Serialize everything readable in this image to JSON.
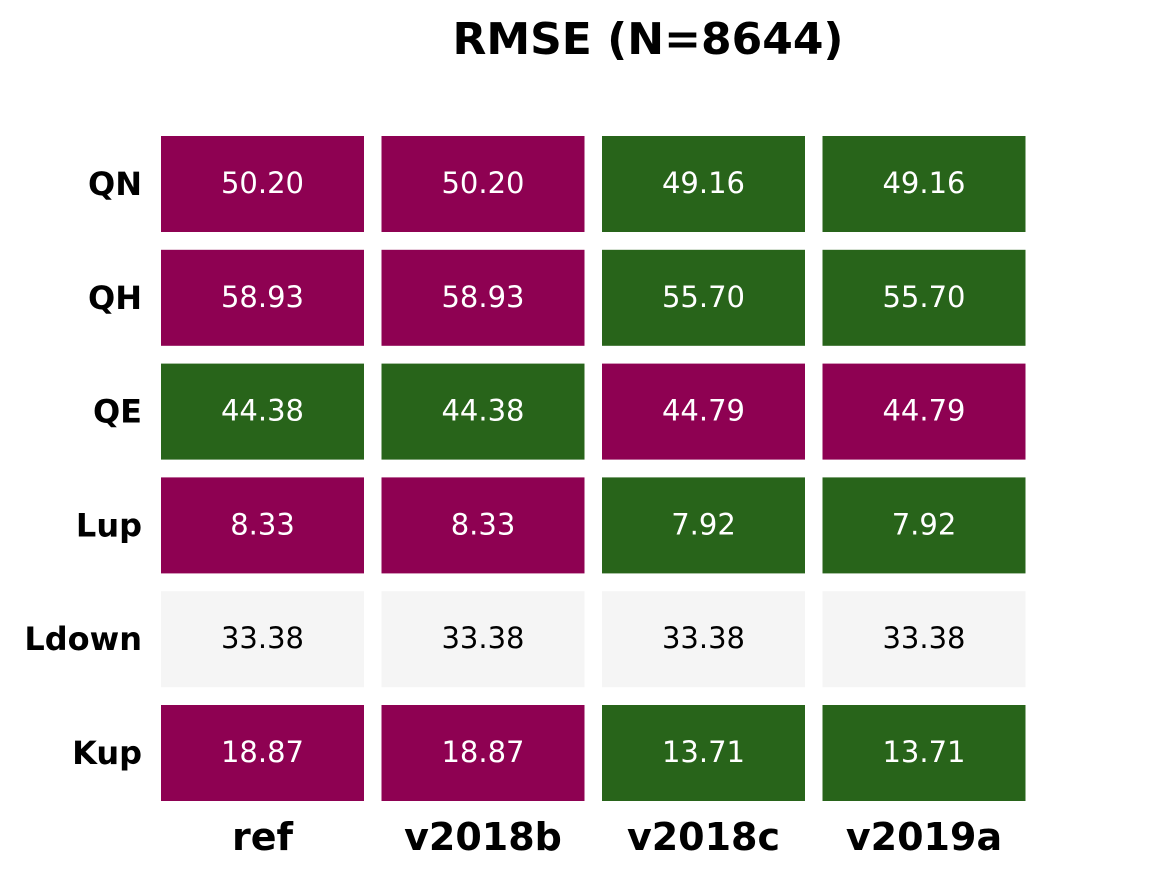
{
  "chart_data": {
    "type": "heatmap",
    "title": "RMSE (N=8644)",
    "rows": [
      "QN",
      "QH",
      "QE",
      "Lup",
      "Ldown",
      "Kup"
    ],
    "columns": [
      "ref",
      "v2018b",
      "v2018c",
      "v2019a"
    ],
    "values": [
      [
        "50.20",
        "50.20",
        "49.16",
        "49.16"
      ],
      [
        "58.93",
        "58.93",
        "55.70",
        "55.70"
      ],
      [
        "44.38",
        "44.38",
        "44.79",
        "44.79"
      ],
      [
        "8.33",
        "8.33",
        "7.92",
        "7.92"
      ],
      [
        "33.38",
        "33.38",
        "33.38",
        "33.38"
      ],
      [
        "18.87",
        "18.87",
        "13.71",
        "13.71"
      ]
    ],
    "cell_status": [
      [
        "worse",
        "worse",
        "better",
        "better"
      ],
      [
        "worse",
        "worse",
        "better",
        "better"
      ],
      [
        "better",
        "better",
        "worse",
        "worse"
      ],
      [
        "worse",
        "worse",
        "better",
        "better"
      ],
      [
        "same",
        "same",
        "same",
        "same"
      ],
      [
        "worse",
        "worse",
        "better",
        "better"
      ]
    ],
    "colors": {
      "better": "#28641a",
      "worse": "#8e0152",
      "same": "#f5f5f5"
    },
    "text_colors": {
      "better": "#ffffff",
      "worse": "#ffffff",
      "same": "#000000"
    }
  }
}
